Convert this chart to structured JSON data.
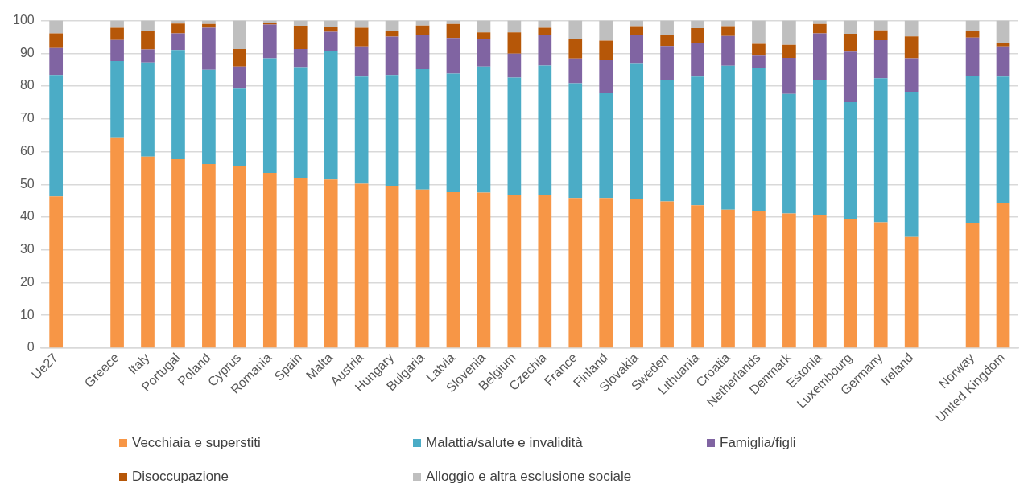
{
  "chart_data": {
    "type": "bar",
    "stacked": true,
    "categories": [
      "Ue27",
      null,
      "Greece",
      "Italy",
      "Portugal",
      "Poland",
      "Cyprus",
      "Romania",
      "Spain",
      "Malta",
      "Austria",
      "Hungary",
      "Bulgaria",
      "Latvia",
      "Slovenia",
      "Belgium",
      "Czechia",
      "France",
      "Finland",
      "Slovakia",
      "Sweden",
      "Lithuania",
      "Croatia",
      "Netherlands",
      "Denmark",
      "Estonia",
      "Luxembourg",
      "Germany",
      "Ireland",
      null,
      "Norway",
      "United Kingdom"
    ],
    "series": [
      {
        "name": "Vecchiaia e superstiti",
        "color": "#f79646",
        "values": [
          46.3,
          null,
          64.1,
          58.5,
          57.7,
          56.2,
          55.5,
          53.5,
          52.0,
          51.5,
          50.2,
          49.6,
          48.4,
          47.6,
          47.5,
          46.7,
          46.7,
          45.8,
          45.8,
          45.6,
          44.8,
          43.6,
          42.3,
          41.7,
          41.1,
          40.6,
          39.5,
          38.4,
          33.9,
          null,
          38.3,
          44.2
        ]
      },
      {
        "name": "Malattia/salute e invalidità",
        "color": "#4bacc6",
        "values": [
          37.1,
          null,
          23.5,
          28.7,
          33.3,
          28.8,
          23.7,
          35.0,
          33.8,
          39.3,
          32.7,
          33.8,
          36.8,
          36.2,
          38.5,
          35.9,
          39.6,
          35.1,
          32.0,
          41.4,
          37.0,
          39.3,
          43.9,
          43.8,
          36.5,
          41.2,
          35.6,
          44.0,
          44.4,
          null,
          44.9,
          38.7
        ]
      },
      {
        "name": "Famiglia/figli",
        "color": "#8064a2",
        "values": [
          8.2,
          null,
          6.5,
          4.0,
          5.1,
          12.8,
          6.8,
          10.3,
          5.5,
          5.8,
          9.2,
          11.7,
          10.3,
          10.9,
          8.3,
          7.3,
          9.3,
          7.5,
          10.1,
          8.6,
          10.4,
          10.3,
          9.1,
          3.8,
          11.0,
          14.3,
          15.4,
          11.6,
          10.2,
          null,
          11.6,
          9.2
        ]
      },
      {
        "name": "Disoccupazione",
        "color": "#b65708",
        "values": [
          4.5,
          null,
          3.7,
          5.6,
          3.0,
          1.2,
          5.3,
          0.5,
          7.1,
          1.4,
          5.7,
          1.6,
          3.0,
          4.3,
          2.1,
          6.5,
          2.2,
          6.0,
          6.0,
          2.7,
          3.3,
          4.5,
          3.0,
          3.6,
          4.0,
          2.9,
          5.5,
          3.0,
          6.7,
          null,
          2.1,
          1.2
        ]
      },
      {
        "name": "Alloggio e altra esclusione sociale",
        "color": "#bfbfbf",
        "values": [
          3.9,
          null,
          2.2,
          3.2,
          0.9,
          1.0,
          8.7,
          0.7,
          1.6,
          2.0,
          2.2,
          3.3,
          1.5,
          1.0,
          3.6,
          3.6,
          2.2,
          5.6,
          6.1,
          1.7,
          4.5,
          2.3,
          1.7,
          7.1,
          7.4,
          1.0,
          4.0,
          3.0,
          4.8,
          null,
          3.1,
          6.7
        ]
      }
    ],
    "ylim": [
      0,
      100
    ],
    "yticks": [
      0,
      10,
      20,
      30,
      40,
      50,
      60,
      70,
      80,
      90,
      100
    ],
    "grid": "y",
    "legend": "bottom"
  }
}
